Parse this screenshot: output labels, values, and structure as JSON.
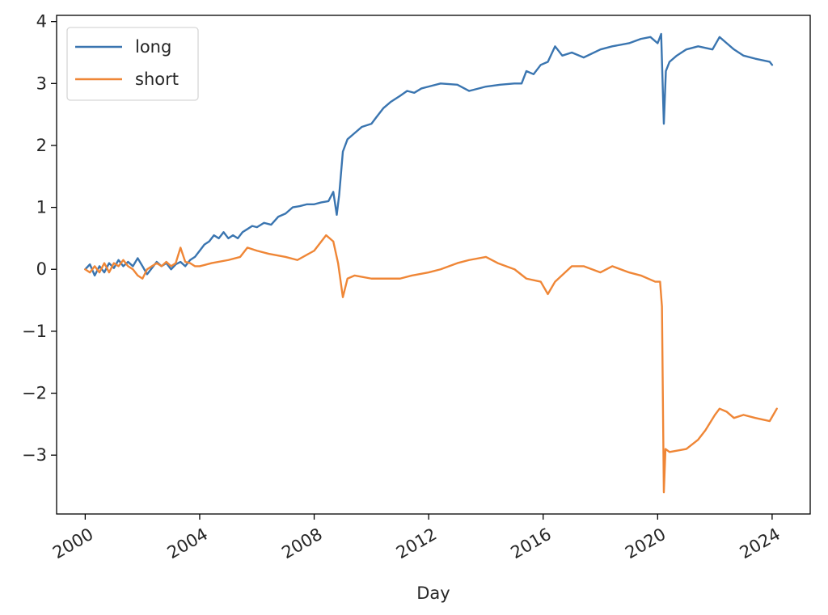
{
  "chart_data": {
    "type": "line",
    "title": "",
    "xlabel": "Day",
    "ylabel": "",
    "x_axis": {
      "type": "date",
      "range": [
        "1999-01-01",
        "2025-05-01"
      ],
      "ticks": [
        "2000",
        "2004",
        "2008",
        "2012",
        "2016",
        "2020",
        "2024"
      ]
    },
    "y_axis": {
      "range": [
        -3.95,
        4.1
      ],
      "ticks": [
        4,
        3,
        2,
        1,
        0,
        -1,
        -2,
        -3
      ],
      "tick_labels": [
        "4",
        "3",
        "2",
        "1",
        "0",
        "−1",
        "−2",
        "−3"
      ]
    },
    "grid": false,
    "legend": "top-left",
    "series": [
      {
        "name": "long",
        "color": "#3a75b0",
        "points": [
          [
            "2000-01-01",
            0.0
          ],
          [
            "2000-03-01",
            0.08
          ],
          [
            "2000-05-01",
            -0.1
          ],
          [
            "2000-07-01",
            0.05
          ],
          [
            "2000-09-01",
            -0.05
          ],
          [
            "2000-11-01",
            0.1
          ],
          [
            "2001-01-01",
            0.02
          ],
          [
            "2001-03-01",
            0.15
          ],
          [
            "2001-05-01",
            0.05
          ],
          [
            "2001-07-01",
            0.12
          ],
          [
            "2001-09-01",
            0.05
          ],
          [
            "2001-11-01",
            0.18
          ],
          [
            "2002-01-01",
            0.05
          ],
          [
            "2002-03-01",
            -0.08
          ],
          [
            "2002-05-01",
            0.02
          ],
          [
            "2002-07-01",
            0.12
          ],
          [
            "2002-09-01",
            0.05
          ],
          [
            "2002-11-01",
            0.1
          ],
          [
            "2003-01-01",
            0.0
          ],
          [
            "2003-03-01",
            0.08
          ],
          [
            "2003-05-01",
            0.12
          ],
          [
            "2003-07-01",
            0.05
          ],
          [
            "2003-09-01",
            0.15
          ],
          [
            "2003-11-01",
            0.2
          ],
          [
            "2004-01-01",
            0.3
          ],
          [
            "2004-03-01",
            0.4
          ],
          [
            "2004-05-01",
            0.45
          ],
          [
            "2004-07-01",
            0.55
          ],
          [
            "2004-09-01",
            0.5
          ],
          [
            "2004-11-01",
            0.6
          ],
          [
            "2005-01-01",
            0.5
          ],
          [
            "2005-03-01",
            0.55
          ],
          [
            "2005-05-01",
            0.5
          ],
          [
            "2005-07-01",
            0.6
          ],
          [
            "2005-09-01",
            0.65
          ],
          [
            "2005-11-01",
            0.7
          ],
          [
            "2006-01-01",
            0.68
          ],
          [
            "2006-04-01",
            0.75
          ],
          [
            "2006-07-01",
            0.72
          ],
          [
            "2006-10-01",
            0.85
          ],
          [
            "2007-01-01",
            0.9
          ],
          [
            "2007-04-01",
            1.0
          ],
          [
            "2007-07-01",
            1.02
          ],
          [
            "2007-10-01",
            1.05
          ],
          [
            "2008-01-01",
            1.05
          ],
          [
            "2008-04-01",
            1.08
          ],
          [
            "2008-07-01",
            1.1
          ],
          [
            "2008-09-01",
            1.25
          ],
          [
            "2008-10-15",
            0.88
          ],
          [
            "2008-11-15",
            1.2
          ],
          [
            "2009-01-01",
            1.9
          ],
          [
            "2009-03-01",
            2.1
          ],
          [
            "2009-06-01",
            2.2
          ],
          [
            "2009-09-01",
            2.3
          ],
          [
            "2010-01-01",
            2.35
          ],
          [
            "2010-03-01",
            2.45
          ],
          [
            "2010-06-01",
            2.6
          ],
          [
            "2010-09-01",
            2.7
          ],
          [
            "2011-01-01",
            2.8
          ],
          [
            "2011-04-01",
            2.88
          ],
          [
            "2011-07-01",
            2.85
          ],
          [
            "2011-10-01",
            2.92
          ],
          [
            "2012-01-01",
            2.95
          ],
          [
            "2012-06-01",
            3.0
          ],
          [
            "2013-01-01",
            2.98
          ],
          [
            "2013-06-01",
            2.88
          ],
          [
            "2013-08-01",
            2.9
          ],
          [
            "2014-01-01",
            2.95
          ],
          [
            "2014-07-01",
            2.98
          ],
          [
            "2015-01-01",
            3.0
          ],
          [
            "2015-04-01",
            3.0
          ],
          [
            "2015-06-01",
            3.2
          ],
          [
            "2015-09-01",
            3.15
          ],
          [
            "2015-12-01",
            3.3
          ],
          [
            "2016-03-01",
            3.35
          ],
          [
            "2016-06-01",
            3.6
          ],
          [
            "2016-09-01",
            3.45
          ],
          [
            "2017-01-01",
            3.5
          ],
          [
            "2017-06-01",
            3.42
          ],
          [
            "2018-01-01",
            3.55
          ],
          [
            "2018-06-01",
            3.6
          ],
          [
            "2019-01-01",
            3.65
          ],
          [
            "2019-06-01",
            3.72
          ],
          [
            "2019-10-01",
            3.75
          ],
          [
            "2020-01-01",
            3.65
          ],
          [
            "2020-02-15",
            3.8
          ],
          [
            "2020-03-20",
            2.35
          ],
          [
            "2020-04-15",
            3.2
          ],
          [
            "2020-06-01",
            3.35
          ],
          [
            "2020-09-01",
            3.45
          ],
          [
            "2021-01-01",
            3.55
          ],
          [
            "2021-06-01",
            3.6
          ],
          [
            "2021-12-01",
            3.55
          ],
          [
            "2022-03-01",
            3.75
          ],
          [
            "2022-06-01",
            3.65
          ],
          [
            "2022-09-01",
            3.55
          ],
          [
            "2023-01-01",
            3.45
          ],
          [
            "2023-06-01",
            3.4
          ],
          [
            "2023-12-01",
            3.35
          ],
          [
            "2024-01-01",
            3.3
          ]
        ]
      },
      {
        "name": "short",
        "color": "#ef8636",
        "points": [
          [
            "2000-01-01",
            0.0
          ],
          [
            "2000-03-01",
            -0.05
          ],
          [
            "2000-05-01",
            0.05
          ],
          [
            "2000-07-01",
            -0.05
          ],
          [
            "2000-09-01",
            0.1
          ],
          [
            "2000-11-01",
            -0.05
          ],
          [
            "2001-01-01",
            0.1
          ],
          [
            "2001-03-01",
            0.05
          ],
          [
            "2001-05-01",
            0.15
          ],
          [
            "2001-07-01",
            0.05
          ],
          [
            "2001-09-01",
            0.0
          ],
          [
            "2001-11-01",
            -0.1
          ],
          [
            "2002-01-01",
            -0.15
          ],
          [
            "2002-03-01",
            0.0
          ],
          [
            "2002-05-01",
            0.05
          ],
          [
            "2002-07-01",
            0.1
          ],
          [
            "2002-09-01",
            0.05
          ],
          [
            "2002-11-01",
            0.12
          ],
          [
            "2003-01-01",
            0.05
          ],
          [
            "2003-03-01",
            0.1
          ],
          [
            "2003-05-01",
            0.35
          ],
          [
            "2003-07-01",
            0.12
          ],
          [
            "2003-09-01",
            0.1
          ],
          [
            "2003-11-01",
            0.05
          ],
          [
            "2004-01-01",
            0.05
          ],
          [
            "2004-06-01",
            0.1
          ],
          [
            "2005-01-01",
            0.15
          ],
          [
            "2005-06-01",
            0.2
          ],
          [
            "2005-09-01",
            0.35
          ],
          [
            "2006-01-01",
            0.3
          ],
          [
            "2006-06-01",
            0.25
          ],
          [
            "2007-01-01",
            0.2
          ],
          [
            "2007-06-01",
            0.15
          ],
          [
            "2008-01-01",
            0.3
          ],
          [
            "2008-06-01",
            0.55
          ],
          [
            "2008-09-01",
            0.45
          ],
          [
            "2008-11-01",
            0.1
          ],
          [
            "2009-01-01",
            -0.45
          ],
          [
            "2009-03-01",
            -0.15
          ],
          [
            "2009-06-01",
            -0.1
          ],
          [
            "2010-01-01",
            -0.15
          ],
          [
            "2010-06-01",
            -0.15
          ],
          [
            "2011-01-01",
            -0.15
          ],
          [
            "2011-06-01",
            -0.1
          ],
          [
            "2012-01-01",
            -0.05
          ],
          [
            "2012-06-01",
            0.0
          ],
          [
            "2013-01-01",
            0.1
          ],
          [
            "2013-06-01",
            0.15
          ],
          [
            "2014-01-01",
            0.2
          ],
          [
            "2014-06-01",
            0.1
          ],
          [
            "2015-01-01",
            0.0
          ],
          [
            "2015-06-01",
            -0.15
          ],
          [
            "2015-12-01",
            -0.2
          ],
          [
            "2016-03-01",
            -0.4
          ],
          [
            "2016-06-01",
            -0.2
          ],
          [
            "2017-01-01",
            0.05
          ],
          [
            "2017-06-01",
            0.05
          ],
          [
            "2018-01-01",
            -0.05
          ],
          [
            "2018-06-01",
            0.05
          ],
          [
            "2019-01-01",
            -0.05
          ],
          [
            "2019-06-01",
            -0.1
          ],
          [
            "2019-12-01",
            -0.2
          ],
          [
            "2020-02-01",
            -0.2
          ],
          [
            "2020-02-25",
            -0.6
          ],
          [
            "2020-03-20",
            -3.6
          ],
          [
            "2020-04-10",
            -2.9
          ],
          [
            "2020-06-01",
            -2.95
          ],
          [
            "2021-01-01",
            -2.9
          ],
          [
            "2021-06-01",
            -2.75
          ],
          [
            "2021-09-01",
            -2.6
          ],
          [
            "2022-01-01",
            -2.35
          ],
          [
            "2022-03-01",
            -2.25
          ],
          [
            "2022-06-01",
            -2.3
          ],
          [
            "2022-09-01",
            -2.4
          ],
          [
            "2023-01-01",
            -2.35
          ],
          [
            "2023-06-01",
            -2.4
          ],
          [
            "2023-12-01",
            -2.45
          ],
          [
            "2024-03-01",
            -2.25
          ]
        ]
      }
    ]
  }
}
